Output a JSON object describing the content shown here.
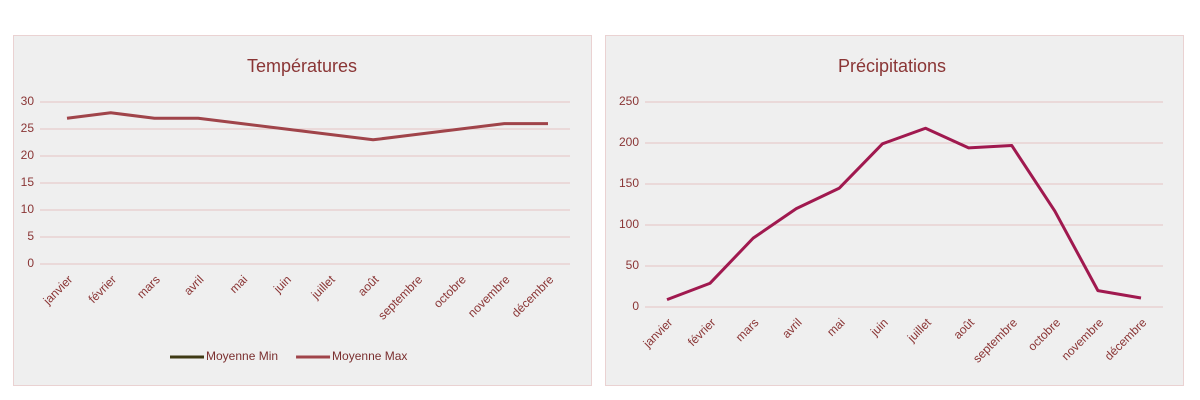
{
  "chart_data": [
    {
      "type": "line",
      "title": "Températures",
      "categories": [
        "janvier",
        "février",
        "mars",
        "avril",
        "mai",
        "juin",
        "juillet",
        "août",
        "septembre",
        "octobre",
        "novembre",
        "décembre"
      ],
      "series": [
        {
          "name": "Moyenne Min",
          "color": "#3f3a14",
          "values": [
            null,
            null,
            null,
            null,
            null,
            null,
            null,
            null,
            null,
            null,
            null,
            null
          ]
        },
        {
          "name": "Moyenne Max",
          "color": "#a0444a",
          "values": [
            27,
            28,
            27,
            27,
            26,
            25,
            24,
            23,
            24,
            25,
            26,
            26
          ]
        }
      ],
      "ylim": [
        0,
        30
      ],
      "yticks": [
        0,
        5,
        10,
        15,
        20,
        25,
        30
      ],
      "grid": true,
      "legend": "bottom"
    },
    {
      "type": "line",
      "title": "Précipitations",
      "categories": [
        "janvier",
        "février",
        "mars",
        "avril",
        "mai",
        "juin",
        "juillet",
        "août",
        "septembre",
        "octobre",
        "novembre",
        "décembre"
      ],
      "values": [
        9,
        29,
        84,
        120,
        145,
        199,
        218,
        194,
        197,
        117,
        20,
        11
      ],
      "color": "#a0194f",
      "ylim": [
        0,
        250
      ],
      "yticks": [
        0,
        50,
        100,
        150,
        200,
        250
      ],
      "grid": true
    }
  ]
}
